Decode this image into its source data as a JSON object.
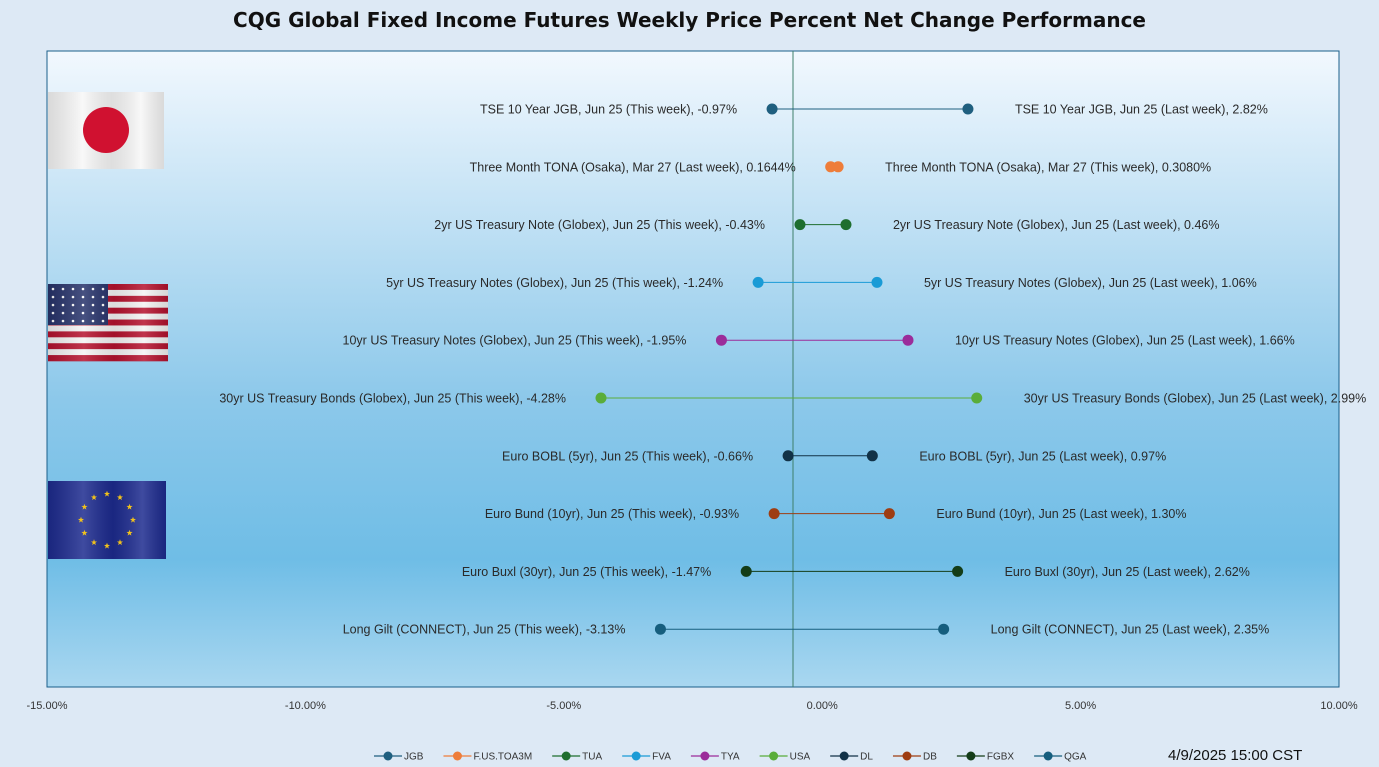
{
  "chart_data": {
    "type": "scatter",
    "title": "CQG Global Fixed Income Futures Weekly Price Percent Net Change Performance",
    "xlim": [
      -15,
      10
    ],
    "x_ticks": [
      -15,
      -10,
      -5,
      0,
      5,
      10
    ],
    "x_tick_labels": [
      "-15.00%",
      "-10.00%",
      "-5.00%",
      "0.00%",
      "5.00%",
      "10.00%"
    ],
    "grid": false,
    "legend_position": "bottom",
    "rows": [
      {
        "code": "JGB",
        "color": "#1f5f7f",
        "left_label": "TSE 10 Year JGB, Jun 25 (This week), -0.97%",
        "left_value": -0.97,
        "right_label": "TSE 10 Year JGB, Jun 25 (Last week), 2.82%",
        "right_value": 2.82
      },
      {
        "code": "F.US.TOA3M",
        "color": "#ee7d3a",
        "left_label": "Three Month TONA (Osaka), Mar 27 (Last week), 0.1644%",
        "left_value": 0.1644,
        "right_label": "Three Month TONA (Osaka), Mar 27 (This week), 0.3080%",
        "right_value": 0.308
      },
      {
        "code": "TUA",
        "color": "#1e6e2e",
        "left_label": "2yr US Treasury Note (Globex), Jun 25 (This week), -0.43%",
        "left_value": -0.43,
        "right_label": "2yr US Treasury Note (Globex), Jun 25 (Last week), 0.46%",
        "right_value": 0.46
      },
      {
        "code": "FVA",
        "color": "#1a9bd6",
        "left_label": "5yr US Treasury Notes (Globex), Jun 25 (This week), -1.24%",
        "left_value": -1.24,
        "right_label": "5yr US Treasury Notes (Globex), Jun 25 (Last week), 1.06%",
        "right_value": 1.06
      },
      {
        "code": "TYA",
        "color": "#9b2c9a",
        "left_label": "10yr US Treasury Notes (Globex), Jun 25 (This week), -1.95%",
        "left_value": -1.95,
        "right_label": "10yr US Treasury Notes (Globex), Jun 25 (Last week), 1.66%",
        "right_value": 1.66
      },
      {
        "code": "USA",
        "color": "#5aad3a",
        "left_label": "30yr US Treasury Bonds (Globex), Jun 25 (This week), -4.28%",
        "left_value": -4.28,
        "right_label": "30yr US Treasury Bonds (Globex), Jun 25 (Last week), 2.99%",
        "right_value": 2.99
      },
      {
        "code": "DL",
        "color": "#123247",
        "left_label": "Euro BOBL (5yr), Jun 25 (This week), -0.66%",
        "left_value": -0.66,
        "right_label": "Euro BOBL (5yr), Jun 25 (Last week), 0.97%",
        "right_value": 0.97
      },
      {
        "code": "DB",
        "color": "#9e3d12",
        "left_label": "Euro Bund (10yr), Jun 25 (This week), -0.93%",
        "left_value": -0.93,
        "right_label": "Euro Bund (10yr), Jun 25 (Last week), 1.30%",
        "right_value": 1.3
      },
      {
        "code": "FGBX",
        "color": "#143d18",
        "left_label": "Euro Buxl (30yr), Jun 25 (This week), -1.47%",
        "left_value": -1.47,
        "right_label": "Euro Buxl (30yr), Jun 25 (Last week), 2.62%",
        "right_value": 2.62
      },
      {
        "code": "QGA",
        "color": "#165e7e",
        "left_label": "Long Gilt (CONNECT), Jun 25 (This week), -3.13%",
        "left_value": -3.13,
        "right_label": "Long Gilt (CONNECT), Jun 25 (Last week), 2.35%",
        "right_value": 2.35
      }
    ],
    "legend": [
      "JGB",
      "F.US.TOA3M",
      "TUA",
      "FVA",
      "TYA",
      "USA",
      "DL",
      "DB",
      "FGBX",
      "QGA"
    ],
    "flags": [
      "japan-flag",
      "usa-flag",
      "eu-flag"
    ]
  },
  "timestamp": "4/9/2025 15:00 CST"
}
